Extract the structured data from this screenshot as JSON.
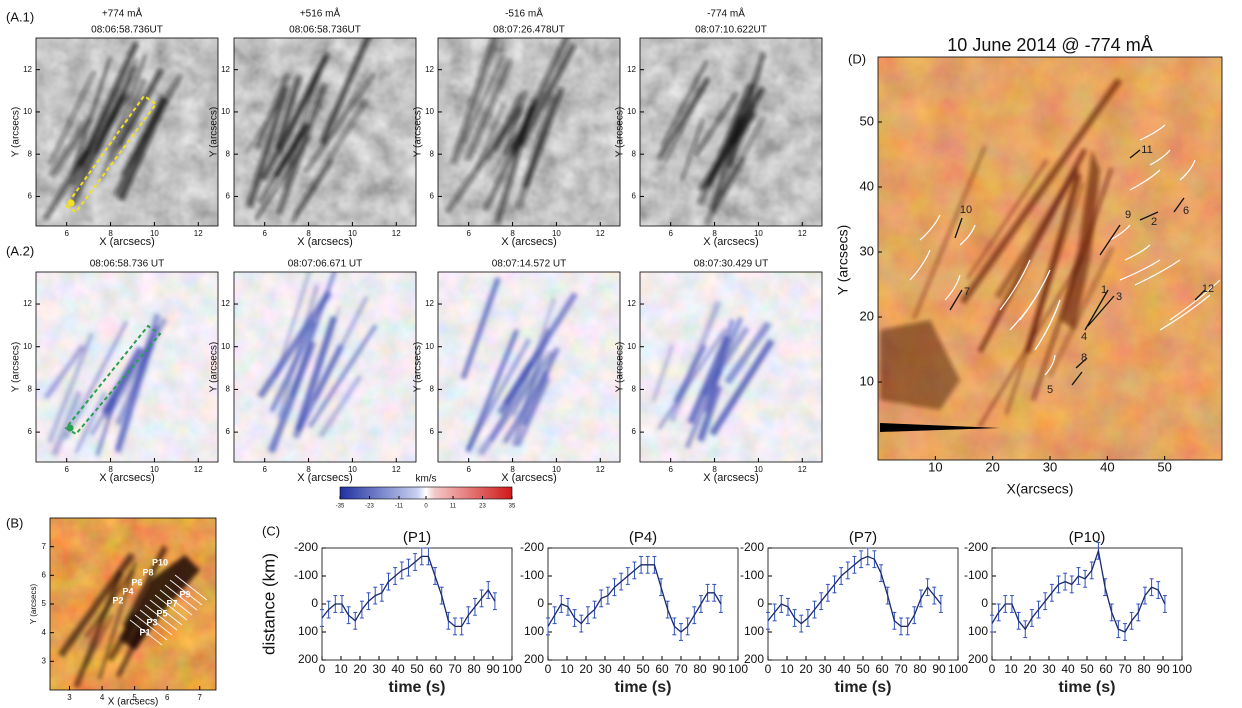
{
  "panels_a1": {
    "label": "(A.1)",
    "wavelengths": [
      "+774 mÅ",
      "+516 mÅ",
      "-516 mÅ",
      "-774 mÅ"
    ],
    "times": [
      "08:06:58.736UT",
      "08:06:58.736UT",
      "08:07:26.478UT",
      "08:07:10.622UT"
    ]
  },
  "panels_a2": {
    "label": "(A.2)",
    "times": [
      "08:06:58.736 UT",
      "08:07:06.671 UT",
      "08:07:14.572 UT",
      "08:07:30.429 UT"
    ]
  },
  "image_axes": {
    "x_label": "X (arcsecs)",
    "y_label": "Y (arcsecs)",
    "xlim": [
      4.6,
      12.9
    ],
    "ylim": [
      4.6,
      13.5
    ],
    "xticks": [
      6,
      8,
      10,
      12
    ],
    "yticks": [
      6,
      8,
      10,
      12
    ]
  },
  "colorbar": {
    "label": "km/s",
    "range": [
      -35,
      35
    ],
    "ticks": [
      -35,
      -23,
      -11,
      0,
      11,
      23,
      35
    ]
  },
  "panel_b": {
    "label": "(B)",
    "x_label": "X (arcsecs)",
    "y_label": "Y (arcsecs)",
    "xlim": [
      2.4,
      7.5
    ],
    "ylim": [
      2.0,
      8.0
    ],
    "xticks": [
      3,
      4,
      5,
      6,
      7
    ],
    "yticks": [
      3,
      4,
      5,
      6,
      7
    ],
    "paths": [
      "P1",
      "P2",
      "P3",
      "P4",
      "P5",
      "P6",
      "P7",
      "P8",
      "P9",
      "P10"
    ]
  },
  "panel_c_label": "(C)",
  "panel_d": {
    "label": "(D)",
    "title": "10 June 2014 @ -774 mÅ",
    "x_label": "X(arcsecs)",
    "y_label": "Y (arcsecs)",
    "xlim": [
      0,
      60
    ],
    "ylim": [
      -2,
      60
    ],
    "xticks": [
      10,
      20,
      30,
      40,
      50
    ],
    "yticks": [
      10,
      20,
      30,
      40,
      50
    ],
    "features": [
      "1",
      "2",
      "3",
      "4",
      "5",
      "6",
      "7",
      "8",
      "9",
      "10",
      "11",
      "12"
    ]
  },
  "chart_data": [
    {
      "type": "line",
      "title": "(P1)",
      "x_label": "time (s)",
      "y_label": "distance (km)",
      "color": "#1a2a6c",
      "error_color": "#3050c0",
      "x": [
        0,
        3.5,
        7,
        10.5,
        14,
        17.5,
        21,
        24.5,
        28,
        31.5,
        35,
        38.5,
        42,
        45.5,
        49,
        52.5,
        56,
        59.5,
        63,
        66.5,
        70,
        73.5,
        77,
        80.5,
        84,
        87.5,
        91
      ],
      "values": [
        50,
        20,
        0,
        0,
        40,
        60,
        20,
        -10,
        -30,
        -40,
        -80,
        -100,
        -120,
        -130,
        -150,
        -170,
        -170,
        -100,
        -30,
        60,
        80,
        80,
        40,
        10,
        -20,
        -50,
        -10
      ],
      "error": 30,
      "xlim": [
        0,
        100
      ],
      "ylim": [
        200,
        -200
      ],
      "xticks": [
        0,
        10,
        20,
        30,
        40,
        50,
        60,
        70,
        80,
        90,
        100
      ],
      "yticks": [
        -200,
        -100,
        0,
        100,
        200
      ]
    },
    {
      "type": "line",
      "title": "(P4)",
      "x_label": "time (s)",
      "color": "#1a2a6c",
      "error_color": "#3050c0",
      "x": [
        0,
        3.5,
        7,
        10.5,
        14,
        17.5,
        21,
        24.5,
        28,
        31.5,
        35,
        38.5,
        42,
        45.5,
        49,
        52.5,
        56,
        59.5,
        63,
        66.5,
        70,
        73.5,
        77,
        80.5,
        84,
        87.5,
        91
      ],
      "values": [
        80,
        40,
        0,
        10,
        50,
        70,
        40,
        20,
        -20,
        -30,
        -60,
        -80,
        -100,
        -120,
        -140,
        -140,
        -140,
        -60,
        20,
        80,
        100,
        80,
        40,
        0,
        -40,
        -40,
        0
      ],
      "error": 30,
      "xlim": [
        0,
        100
      ],
      "ylim": [
        200,
        -200
      ],
      "xticks": [
        0,
        10,
        20,
        30,
        40,
        50,
        60,
        70,
        80,
        90,
        100
      ],
      "yticks": [
        -200,
        -100,
        0,
        100,
        200
      ]
    },
    {
      "type": "line",
      "title": "(P7)",
      "x_label": "time (s)",
      "color": "#1a2a6c",
      "error_color": "#3050c0",
      "x": [
        0,
        3.5,
        7,
        10.5,
        14,
        17.5,
        21,
        24.5,
        28,
        31.5,
        35,
        38.5,
        42,
        45.5,
        49,
        52.5,
        56,
        59.5,
        63,
        66.5,
        70,
        73.5,
        77,
        80.5,
        84,
        87.5,
        91
      ],
      "values": [
        60,
        30,
        0,
        10,
        50,
        70,
        50,
        20,
        -10,
        -40,
        -70,
        -100,
        -120,
        -140,
        -160,
        -170,
        -160,
        -110,
        -30,
        60,
        80,
        80,
        40,
        -20,
        -60,
        -30,
        0
      ],
      "error": 30,
      "xlim": [
        0,
        100
      ],
      "ylim": [
        200,
        -200
      ],
      "xticks": [
        0,
        10,
        20,
        30,
        40,
        50,
        60,
        70,
        80,
        90,
        100
      ],
      "yticks": [
        -200,
        -100,
        0,
        100,
        200
      ]
    },
    {
      "type": "line",
      "title": "(P10)",
      "x_label": "time (s)",
      "color": "#1a2a6c",
      "error_color": "#3050c0",
      "x": [
        0,
        3.5,
        7,
        10.5,
        14,
        17.5,
        21,
        24.5,
        28,
        31.5,
        35,
        38.5,
        42,
        45.5,
        49,
        52.5,
        56,
        59.5,
        63,
        66.5,
        70,
        73.5,
        77,
        80.5,
        84,
        87.5,
        91
      ],
      "values": [
        70,
        30,
        0,
        0,
        60,
        90,
        50,
        20,
        -10,
        -40,
        -70,
        -80,
        -70,
        -100,
        -90,
        -120,
        -190,
        -60,
        30,
        90,
        100,
        60,
        30,
        -30,
        -60,
        -50,
        0
      ],
      "error": 30,
      "xlim": [
        0,
        100
      ],
      "ylim": [
        200,
        -200
      ],
      "xticks": [
        0,
        10,
        20,
        30,
        40,
        50,
        60,
        70,
        80,
        90,
        100
      ],
      "yticks": [
        -200,
        -100,
        0,
        100,
        200
      ]
    }
  ]
}
